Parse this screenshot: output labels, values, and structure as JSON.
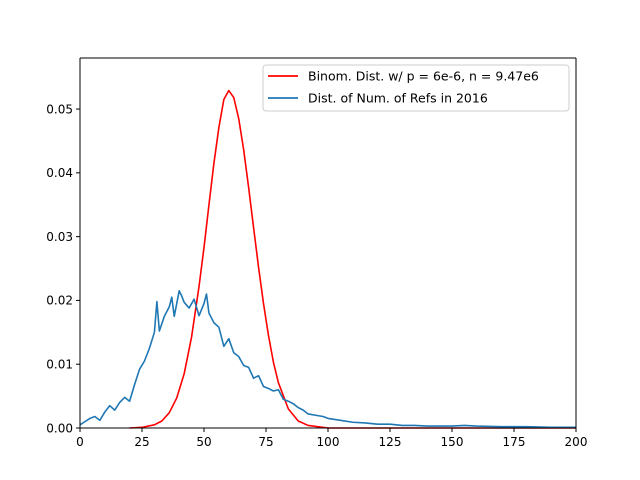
{
  "chart_data": {
    "type": "line",
    "title": "",
    "xlabel": "",
    "ylabel": "",
    "xlim": [
      0,
      200
    ],
    "ylim": [
      0,
      0.058
    ],
    "xticks": [
      0,
      25,
      50,
      75,
      100,
      125,
      150,
      175,
      200
    ],
    "xtick_labels": [
      "0",
      "25",
      "50",
      "75",
      "100",
      "125",
      "150",
      "175",
      "200"
    ],
    "yticks": [
      0.0,
      0.01,
      0.02,
      0.03,
      0.04,
      0.05
    ],
    "ytick_labels": [
      "0.00",
      "0.01",
      "0.02",
      "0.03",
      "0.04",
      "0.05"
    ],
    "grid": false,
    "legend_position": "upper right",
    "series": [
      {
        "name": "Binom. Dist. w/ p = 6e-6, n = 9.47e6",
        "color": "#ff0000",
        "x": [
          20,
          25,
          30,
          33,
          36,
          39,
          42,
          45,
          48,
          50,
          52,
          54,
          56,
          58,
          60,
          62,
          64,
          66,
          68,
          70,
          72,
          74,
          76,
          78,
          80,
          84,
          88,
          92,
          100,
          120,
          200
        ],
        "y": [
          0.0,
          0.0001,
          0.0005,
          0.0011,
          0.0024,
          0.0047,
          0.0085,
          0.0143,
          0.0222,
          0.0283,
          0.035,
          0.0415,
          0.0471,
          0.0515,
          0.0529,
          0.0518,
          0.0485,
          0.0436,
          0.0377,
          0.0314,
          0.0252,
          0.0195,
          0.0145,
          0.0103,
          0.0071,
          0.003,
          0.0011,
          0.0004,
          0.0,
          0.0,
          0.0
        ]
      },
      {
        "name": "Dist. of Num. of Refs in 2016",
        "color": "#1f77b4",
        "x": [
          0,
          2,
          4,
          6,
          8,
          10,
          12,
          14,
          16,
          18,
          20,
          22,
          24,
          26,
          28,
          30,
          31,
          32,
          34,
          36,
          37,
          38,
          40,
          41,
          42,
          44,
          46,
          48,
          50,
          51,
          52,
          54,
          56,
          58,
          60,
          62,
          64,
          66,
          68,
          70,
          72,
          74,
          76,
          78,
          80,
          82,
          84,
          86,
          88,
          90,
          92,
          95,
          98,
          100,
          105,
          110,
          115,
          120,
          125,
          130,
          135,
          140,
          145,
          150,
          155,
          160,
          170,
          180,
          190,
          200
        ],
        "y": [
          0.0005,
          0.001,
          0.0015,
          0.0018,
          0.0012,
          0.0025,
          0.0035,
          0.0028,
          0.004,
          0.0048,
          0.0042,
          0.0068,
          0.0092,
          0.0105,
          0.0125,
          0.015,
          0.0198,
          0.0152,
          0.0175,
          0.019,
          0.0205,
          0.0175,
          0.0215,
          0.0207,
          0.0197,
          0.0188,
          0.0202,
          0.0176,
          0.0195,
          0.021,
          0.018,
          0.0165,
          0.0158,
          0.0128,
          0.014,
          0.0118,
          0.0112,
          0.0098,
          0.0095,
          0.0078,
          0.0082,
          0.0065,
          0.0062,
          0.0058,
          0.006,
          0.0045,
          0.0042,
          0.0038,
          0.0032,
          0.0028,
          0.0022,
          0.002,
          0.0018,
          0.0015,
          0.0012,
          0.0009,
          0.0008,
          0.0006,
          0.0006,
          0.0004,
          0.0004,
          0.0003,
          0.0003,
          0.0003,
          0.0004,
          0.0003,
          0.0002,
          0.0002,
          0.0001,
          0.0001
        ]
      }
    ]
  }
}
